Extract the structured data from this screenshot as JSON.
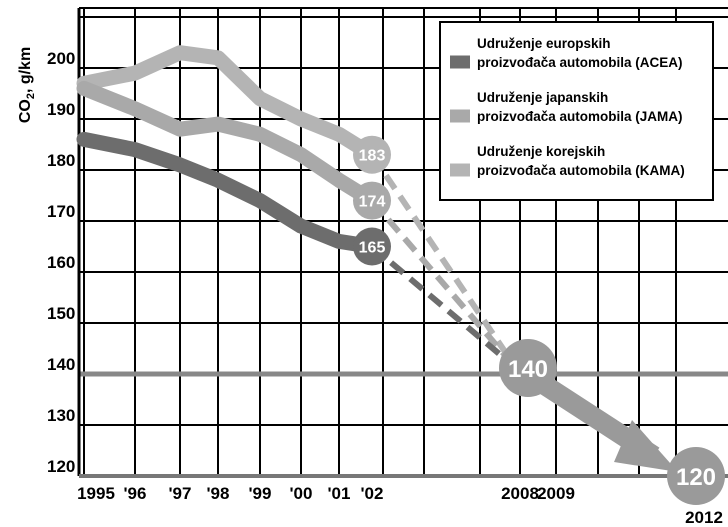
{
  "chart_data": {
    "type": "line",
    "ylabel": "CO2, g/km",
    "ylabel_main": "CO",
    "ylabel_sub": "2",
    "ylabel_unit": ", g/km",
    "ylim": [
      120,
      210
    ],
    "y_ticks": [
      "200",
      "190",
      "180",
      "170",
      "160",
      "150",
      "140",
      "130",
      "120"
    ],
    "x_ticks": [
      "1995",
      "'96",
      "'97",
      "'98",
      "'99",
      "'00",
      "'01",
      "'02",
      "2008",
      "2009",
      "2012"
    ],
    "target_line": 140,
    "series": [
      {
        "name": "Udruženje europskih proizvođača automobila (ACEA)",
        "legend": [
          "Udruženje europskih",
          "proizvođača automobila (ACEA)"
        ],
        "color": "#6d6d6d",
        "x": [
          "1995",
          "'96",
          "'97",
          "'98",
          "'99",
          "'00",
          "'01",
          "'02"
        ],
        "values": [
          186,
          184,
          181,
          178,
          174,
          169,
          166,
          165
        ],
        "end_label": "165"
      },
      {
        "name": "Udruženje japanskih proizvođača automobila (JAMA)",
        "legend": [
          "Udruženje japanskih",
          "proizvođača automobila (JAMA)"
        ],
        "color": "#a9a9a9",
        "x": [
          "1995",
          "'96",
          "'97",
          "'98",
          "'99",
          "'00",
          "'01",
          "'02"
        ],
        "values": [
          196,
          192,
          188,
          189,
          187,
          183,
          178,
          174
        ],
        "end_label": "174"
      },
      {
        "name": "Udruženje korejskih proizvođača automobila (KAMA)",
        "legend": [
          "Udruženje korejskih",
          "proizvođača automobila (KAMA)"
        ],
        "color": "#b4b4b4",
        "x": [
          "1995",
          "'96",
          "'97",
          "'98",
          "'99",
          "'00",
          "'01",
          "'02"
        ],
        "values": [
          197,
          199,
          203,
          202,
          194,
          190,
          187,
          183
        ],
        "end_label": "183"
      }
    ],
    "targets": [
      {
        "x": "2008",
        "value": 140,
        "label": "140"
      },
      {
        "x": "2012",
        "value": 120,
        "label": "120"
      }
    ]
  }
}
